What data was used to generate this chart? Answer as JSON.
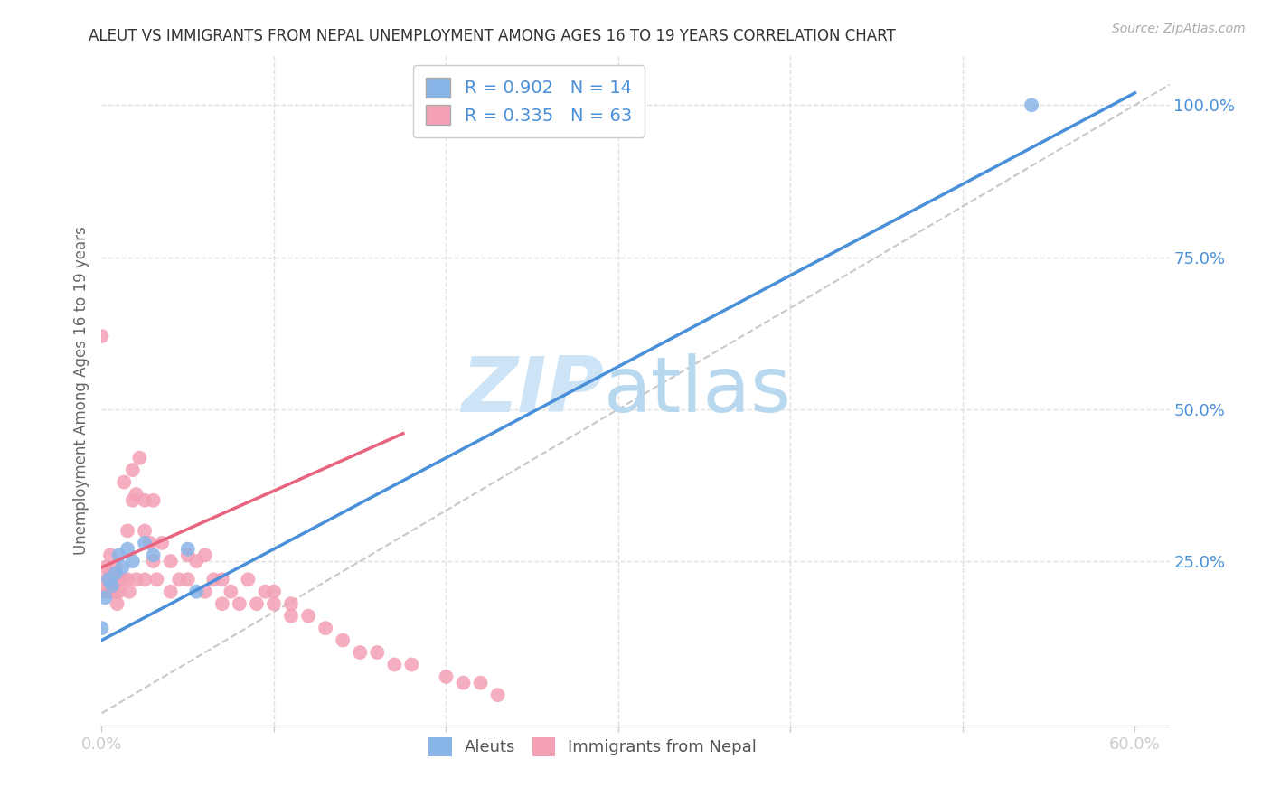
{
  "title": "ALEUT VS IMMIGRANTS FROM NEPAL UNEMPLOYMENT AMONG AGES 16 TO 19 YEARS CORRELATION CHART",
  "source": "Source: ZipAtlas.com",
  "ylabel": "Unemployment Among Ages 16 to 19 years",
  "xlim": [
    0.0,
    0.62
  ],
  "ylim": [
    -0.02,
    1.08
  ],
  "xticks": [
    0.0,
    0.1,
    0.2,
    0.3,
    0.4,
    0.5,
    0.6
  ],
  "xticklabels": [
    "0.0%",
    "",
    "",
    "",
    "",
    "",
    "60.0%"
  ],
  "yticks_right": [
    0.25,
    0.5,
    0.75,
    1.0
  ],
  "yticklabels_right": [
    "25.0%",
    "50.0%",
    "75.0%",
    "100.0%"
  ],
  "aleut_R": 0.902,
  "aleut_N": 14,
  "nepal_R": 0.335,
  "nepal_N": 63,
  "aleut_color": "#89b4e8",
  "nepal_color": "#f4a0b5",
  "aleut_line_color": "#4a90d9",
  "nepal_line_color": "#e8637e",
  "ref_line_color": "#c8c8c8",
  "watermark_color": "#cce4f6",
  "background_color": "#ffffff",
  "grid_color": "#e0e0e0",
  "aleut_x": [
    0.0,
    0.002,
    0.004,
    0.006,
    0.008,
    0.01,
    0.012,
    0.015,
    0.018,
    0.025,
    0.03,
    0.05,
    0.055,
    0.54
  ],
  "aleut_y": [
    0.14,
    0.19,
    0.22,
    0.21,
    0.23,
    0.26,
    0.24,
    0.27,
    0.25,
    0.28,
    0.26,
    0.27,
    0.2,
    1.0
  ],
  "nepal_x": [
    0.0,
    0.0,
    0.002,
    0.003,
    0.004,
    0.005,
    0.005,
    0.006,
    0.007,
    0.008,
    0.008,
    0.009,
    0.01,
    0.01,
    0.012,
    0.013,
    0.015,
    0.015,
    0.016,
    0.018,
    0.018,
    0.02,
    0.02,
    0.022,
    0.025,
    0.025,
    0.025,
    0.028,
    0.03,
    0.03,
    0.032,
    0.035,
    0.04,
    0.04,
    0.045,
    0.05,
    0.05,
    0.055,
    0.06,
    0.06,
    0.065,
    0.07,
    0.07,
    0.075,
    0.08,
    0.085,
    0.09,
    0.095,
    0.1,
    0.1,
    0.11,
    0.11,
    0.12,
    0.13,
    0.14,
    0.15,
    0.16,
    0.17,
    0.18,
    0.2,
    0.21,
    0.22,
    0.23
  ],
  "nepal_y": [
    0.62,
    0.2,
    0.24,
    0.22,
    0.2,
    0.23,
    0.26,
    0.2,
    0.22,
    0.24,
    0.2,
    0.18,
    0.22,
    0.2,
    0.22,
    0.38,
    0.22,
    0.3,
    0.2,
    0.35,
    0.4,
    0.22,
    0.36,
    0.42,
    0.22,
    0.35,
    0.3,
    0.28,
    0.25,
    0.35,
    0.22,
    0.28,
    0.2,
    0.25,
    0.22,
    0.22,
    0.26,
    0.25,
    0.2,
    0.26,
    0.22,
    0.18,
    0.22,
    0.2,
    0.18,
    0.22,
    0.18,
    0.2,
    0.2,
    0.18,
    0.16,
    0.18,
    0.16,
    0.14,
    0.12,
    0.1,
    0.1,
    0.08,
    0.08,
    0.06,
    0.05,
    0.05,
    0.03
  ],
  "aleut_line_x0": 0.0,
  "aleut_line_y0": 0.12,
  "aleut_line_x1": 0.6,
  "aleut_line_y1": 1.02,
  "nepal_line_x0": 0.0,
  "nepal_line_y0": 0.24,
  "nepal_line_x1": 0.175,
  "nepal_line_y1": 0.46
}
